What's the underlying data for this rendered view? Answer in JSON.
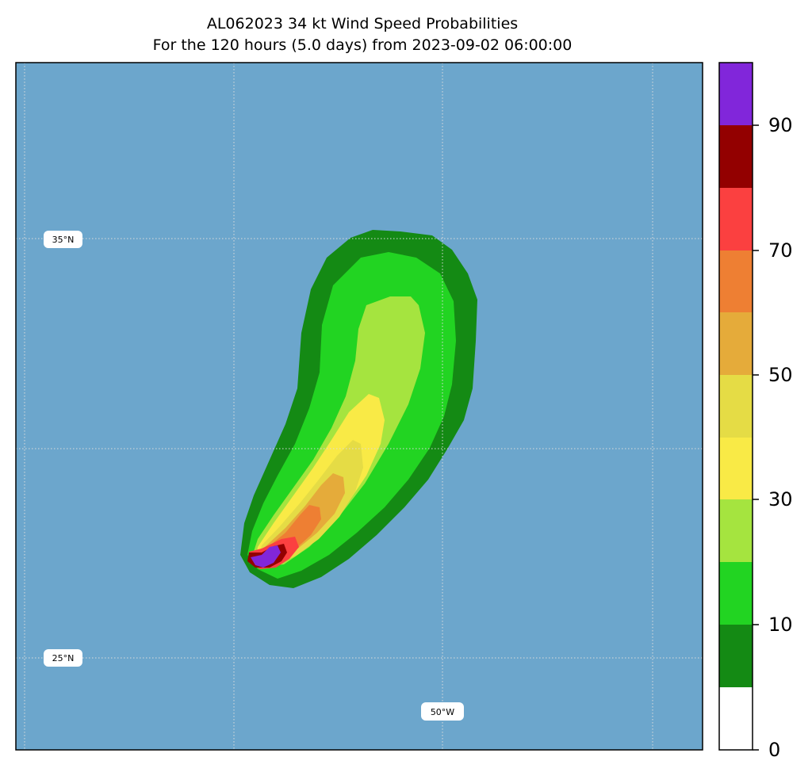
{
  "title": {
    "line1": "AL062023 34 kt Wind Speed Probabilities",
    "line2": "For the 120 hours (5.0 days) from 2023-09-02 06:00:00"
  },
  "map": {
    "ocean_color": "#6ca6cc",
    "grid_labels": {
      "lat_35": "35°N",
      "lat_25": "25°N",
      "lon_50": "50°W"
    }
  },
  "colorbar": {
    "ticks": [
      "0",
      "10",
      "30",
      "50",
      "70",
      "90"
    ],
    "colors": [
      "#ffffff",
      "#148a14",
      "#22d422",
      "#a5e43f",
      "#f9ea46",
      "#e5dc45",
      "#e5ab3a",
      "#ee7f33",
      "#fb4040",
      "#930000",
      "#8126da"
    ]
  }
}
